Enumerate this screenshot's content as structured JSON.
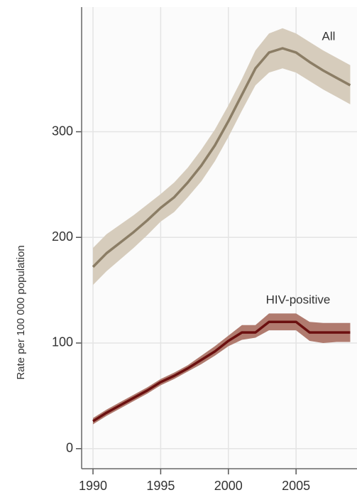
{
  "chart_data": {
    "type": "line",
    "y_label": "Rate per 100 000 population",
    "x": [
      1990,
      1991,
      1992,
      1993,
      1994,
      1995,
      1996,
      1997,
      1998,
      1999,
      2000,
      2001,
      2002,
      2003,
      2004,
      2005,
      2006,
      2007,
      2008,
      2009
    ],
    "series": [
      {
        "name": "All",
        "color": "#8b7d65",
        "band_color": "#d6ccbc",
        "values": [
          172,
          185,
          195,
          205,
          216,
          228,
          238,
          252,
          268,
          287,
          310,
          335,
          360,
          375,
          379,
          375,
          366,
          358,
          351,
          344
        ],
        "lower": [
          155,
          168,
          179,
          190,
          202,
          215,
          224,
          238,
          253,
          272,
          295,
          320,
          344,
          356,
          360,
          356,
          348,
          340,
          333,
          326
        ],
        "upper": [
          190,
          203,
          212,
          221,
          231,
          241,
          252,
          266,
          283,
          302,
          325,
          350,
          377,
          393,
          398,
          393,
          385,
          377,
          370,
          363
        ]
      },
      {
        "name": "HIV-positive",
        "color": "#6b0f0f",
        "band_color": "#b07b6f",
        "values": [
          26,
          34,
          41,
          48,
          55,
          63,
          69,
          76,
          84,
          92,
          102,
          110,
          110,
          120,
          120,
          120,
          110,
          110,
          110,
          110
        ],
        "lower": [
          23,
          31,
          38,
          45,
          52,
          60,
          66,
          73,
          80,
          88,
          97,
          103,
          105,
          112,
          112,
          112,
          102,
          100,
          101,
          101
        ],
        "upper": [
          29,
          37,
          44,
          51,
          58,
          66,
          72,
          79,
          88,
          97,
          107,
          117,
          117,
          128,
          128,
          128,
          120,
          119,
          119,
          119
        ]
      }
    ],
    "xlim": [
      1989.16,
      2009.5
    ],
    "xticks": [
      1990,
      1995,
      2000,
      2005
    ],
    "ylim": [
      -19,
      418
    ],
    "yticks": [
      0,
      100,
      200,
      300
    ],
    "grid": true
  }
}
